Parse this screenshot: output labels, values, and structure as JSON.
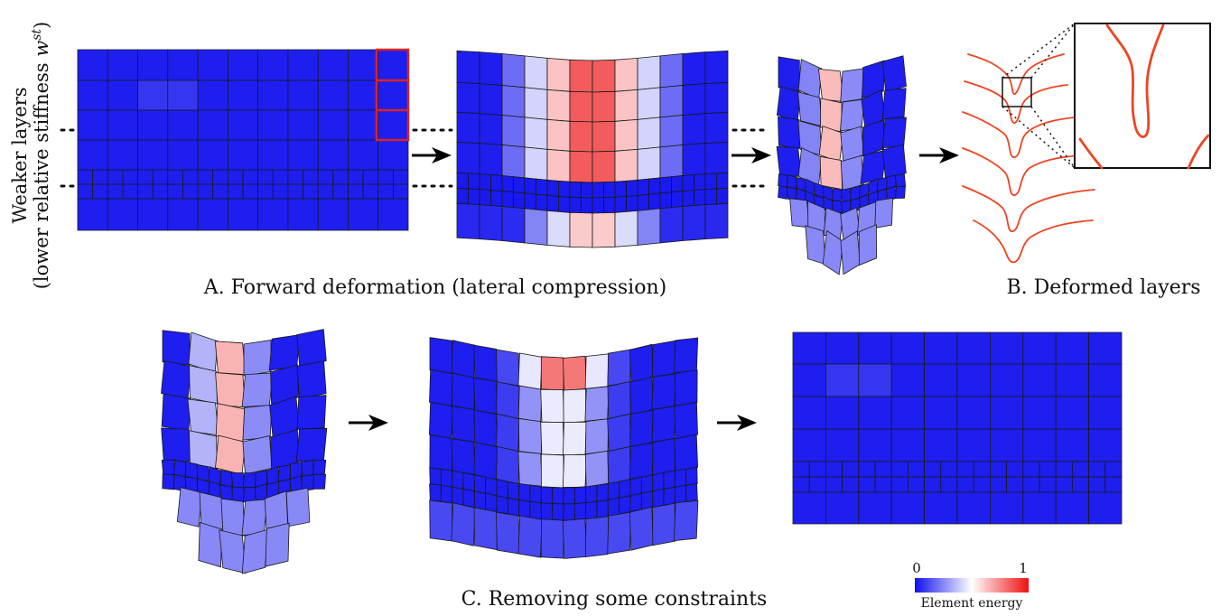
{
  "side_label": {
    "line1": "Weaker layers",
    "line2_prefix": "(lower relative stiffness ",
    "line2_var": "w",
    "line2_sup": "st",
    "line2_suffix": ")"
  },
  "captions": {
    "forward": "A. Forward deformation (lateral compression)",
    "deformed": "B. Deformed layers",
    "removing": "C. Removing some constraints"
  },
  "colorbar": {
    "min_label": "0",
    "max_label": "1",
    "title": "Element energy",
    "low_color": "#1010ee",
    "mid_color": "#ffffff",
    "high_color": "#ee1010"
  },
  "colors": {
    "highlight": "#dd2222",
    "fold_line": "#ee4422",
    "cell_border": "#1a1a1a"
  },
  "icons": [
    "arrow-right-icon",
    "dotted-guide-line",
    "zoom-inset-box"
  ]
}
